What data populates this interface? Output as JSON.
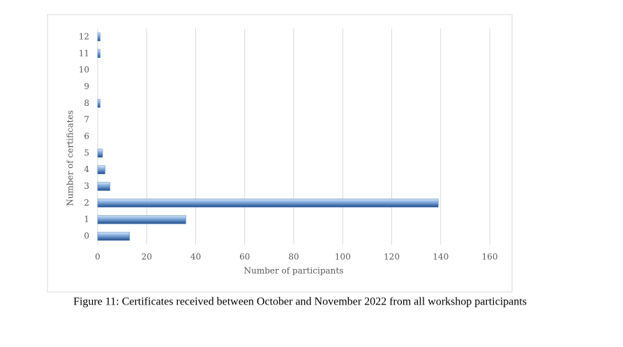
{
  "chart_data": {
    "type": "bar",
    "orientation": "horizontal",
    "caption": "Figure 11: Certificates received between October and November 2022 from all workshop participants",
    "x_label": "Number of participants",
    "y_label": "Number of certificates",
    "categories": [
      "0",
      "1",
      "2",
      "3",
      "4",
      "5",
      "6",
      "7",
      "8",
      "9",
      "10",
      "11",
      "12"
    ],
    "values": [
      13,
      36,
      139,
      5,
      3,
      2,
      0,
      0,
      1,
      0,
      0,
      1,
      1
    ],
    "color": "#4f81bd",
    "xlim": [
      0,
      160
    ],
    "xticks": [
      0,
      20,
      40,
      60,
      80,
      100,
      120,
      140,
      160
    ],
    "grid": true
  }
}
